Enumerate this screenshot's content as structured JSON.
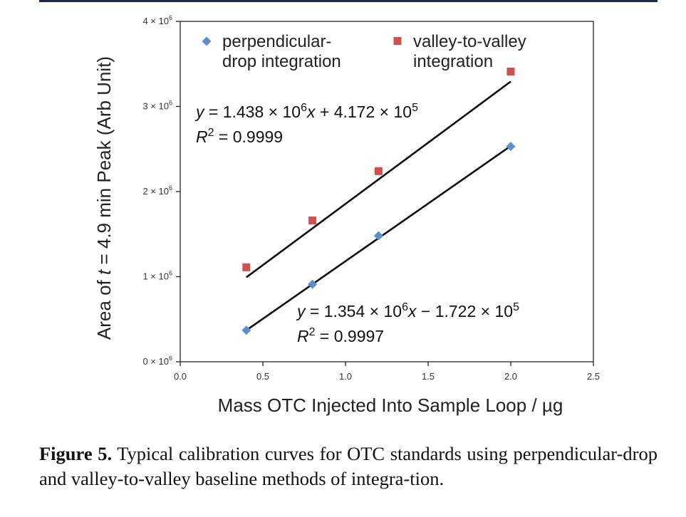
{
  "chart_data": {
    "type": "scatter",
    "xlabel": "Mass OTC Injected Into Sample Loop / µg",
    "ylabel_parts": [
      "Area of ",
      "t",
      " = 4.9 min Peak (Arb Unit)"
    ],
    "xlim": [
      0,
      2.5
    ],
    "ylim": [
      0,
      4000000
    ],
    "xticks": [
      {
        "value": 0.0,
        "label": "0.0"
      },
      {
        "value": 0.5,
        "label": "0.5"
      },
      {
        "value": 1.0,
        "label": "1.0"
      },
      {
        "value": 1.5,
        "label": "1.5"
      },
      {
        "value": 2.0,
        "label": "2.0"
      },
      {
        "value": 2.5,
        "label": "2.5"
      }
    ],
    "yticks": [
      {
        "value": 0,
        "mant": "0 × 10",
        "exp": "6"
      },
      {
        "value": 1000000,
        "mant": "1 × 10",
        "exp": "6"
      },
      {
        "value": 2000000,
        "mant": "2 × 10",
        "exp": "6"
      },
      {
        "value": 3000000,
        "mant": "3 × 10",
        "exp": "6"
      },
      {
        "value": 4000000,
        "mant": "4 × 10",
        "exp": "6"
      }
    ],
    "grid": false,
    "legend_position": "top",
    "series": [
      {
        "name": "perpendicular-drop integration",
        "legend_lines": [
          "perpendicular-",
          "drop integration"
        ],
        "marker": "diamond",
        "color": "#5b8fcf",
        "x": [
          0.4,
          0.8,
          1.2,
          2.0
        ],
        "y": [
          370000,
          910000,
          1480000,
          2530000
        ],
        "fit": {
          "slope": 1354000,
          "intercept": -172200,
          "x_range": [
            0.4,
            2.0
          ]
        },
        "equation": {
          "lhs": "y = 1.354 × 10",
          "exp": "6",
          "mid": "x − 1.722 × 10",
          "exp2": "5"
        },
        "r2": {
          "label": "R",
          "exp": "2",
          "value": " = 0.9997"
        }
      },
      {
        "name": "valley-to-valley integration",
        "legend_lines": [
          "valley-to-valley",
          "integration"
        ],
        "marker": "square",
        "color": "#d0504f",
        "x": [
          0.4,
          0.8,
          1.2,
          2.0
        ],
        "y": [
          1110000,
          1660000,
          2240000,
          3410000
        ],
        "fit": {
          "slope": 1438000,
          "intercept": 417200,
          "x_range": [
            0.4,
            2.0
          ]
        },
        "equation": {
          "lhs": "y = 1.438 × 10",
          "exp": "6",
          "mid": "x + 4.172 × 10",
          "exp2": "5"
        },
        "r2": {
          "label": "R",
          "exp": "2",
          "value": " = 0.9999"
        }
      }
    ]
  },
  "caption": {
    "label": "Figure 5.",
    "text": " Typical calibration curves for OTC standards using perpendicular-drop and valley-to-valley baseline methods of integra-tion."
  }
}
